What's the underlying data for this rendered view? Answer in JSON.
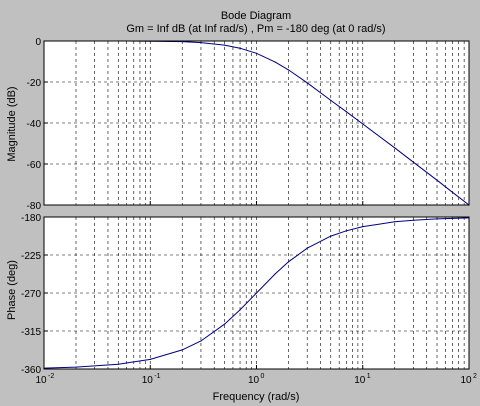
{
  "chart_data": {
    "type": "line",
    "title": "Bode Diagram",
    "subtitle": "Gm = Inf dB (at Inf rad/s) ,  Pm = -180 deg (at 0 rad/s)",
    "xlabel": "Frequency  (rad/s)",
    "x_scale": "log",
    "xlim": [
      0.01,
      100
    ],
    "x_ticks": [
      {
        "value": 0.01,
        "base": "10",
        "exp": "-2"
      },
      {
        "value": 0.1,
        "base": "10",
        "exp": "-1"
      },
      {
        "value": 1,
        "base": "10",
        "exp": "0"
      },
      {
        "value": 10,
        "base": "10",
        "exp": "1"
      },
      {
        "value": 100,
        "base": "10",
        "exp": "2"
      }
    ],
    "grid": true,
    "line_color": "#00007f",
    "panels": [
      {
        "ylabel": "Magnitude (dB)",
        "ylim": [
          -80,
          0
        ],
        "y_ticks": [
          0,
          -20,
          -40,
          -60,
          -80
        ],
        "series": [
          {
            "x": [
              0.01,
              0.02,
              0.05,
              0.1,
              0.2,
              0.3,
              0.5,
              0.7,
              1,
              1.5,
              2,
              3,
              5,
              7,
              10,
              20,
              30,
              50,
              70,
              100
            ],
            "y": [
              0,
              0,
              0,
              -0.1,
              -0.3,
              -0.8,
              -2,
              -3.5,
              -6.0,
              -10.3,
              -14.1,
              -20.4,
              -29.0,
              -34.5,
              -40.5,
              -52.1,
              -59.1,
              -67.9,
              -73.8,
              -80.0
            ]
          }
        ]
      },
      {
        "ylabel": "Phase (deg)",
        "ylim": [
          -360,
          -180
        ],
        "y_ticks": [
          -180,
          -225,
          -270,
          -315,
          -360
        ],
        "series": [
          {
            "x": [
              0.01,
              0.02,
              0.05,
              0.1,
              0.2,
              0.3,
              0.5,
              0.7,
              1,
              1.5,
              2,
              3,
              5,
              7,
              10,
              20,
              30,
              50,
              70,
              100
            ],
            "y": [
              -358.9,
              -357.7,
              -354.3,
              -348.6,
              -337.4,
              -326.8,
              -306.9,
              -290.0,
              -270.0,
              -247.4,
              -233.1,
              -216.9,
              -202.6,
              -196.3,
              -191.4,
              -185.7,
              -183.8,
              -182.3,
              -181.6,
              -181.1
            ]
          }
        ]
      }
    ]
  }
}
